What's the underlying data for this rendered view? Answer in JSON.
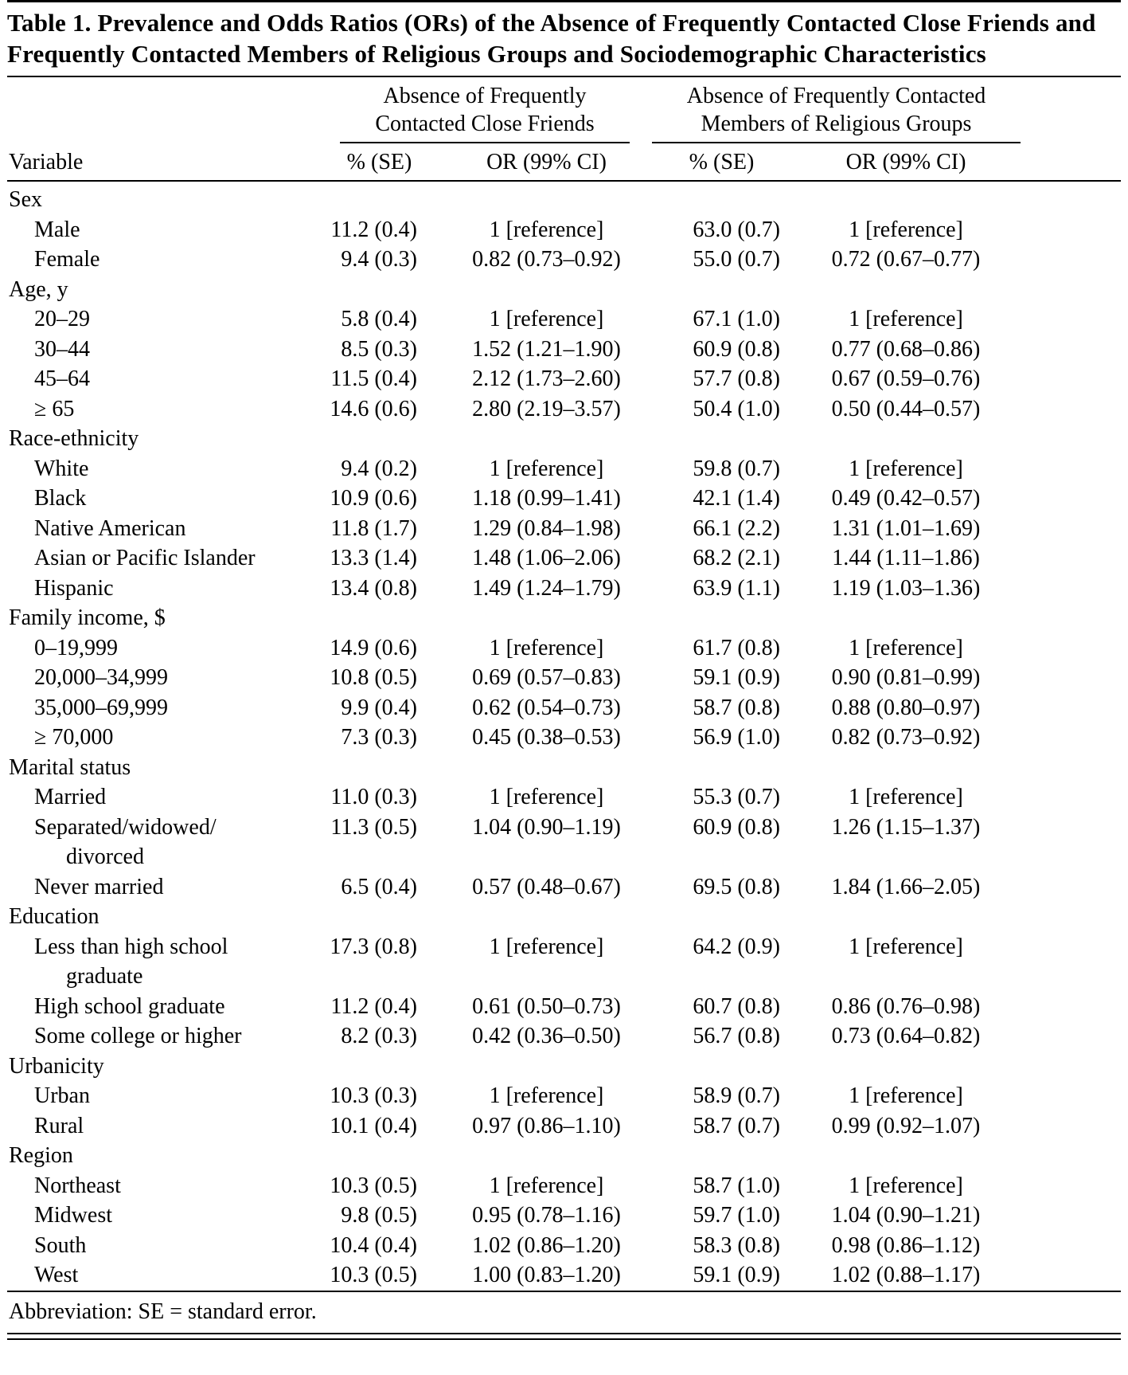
{
  "title": "Table 1. Prevalence and Odds Ratios (ORs) of the Absence of Frequently Contacted Close Friends and Frequently Contacted Members of Religious Groups and Sociodemographic Characteristics",
  "footnote": "Abbreviation: SE = standard error.",
  "table": {
    "group_headers": [
      {
        "label": "Absence of Frequently Contacted Close Friends"
      },
      {
        "label": "Absence of Frequently Contacted Members of Religious Groups"
      }
    ],
    "columns": [
      "Variable",
      "% (SE)",
      "OR (99% CI)",
      "% (SE)",
      "OR (99% CI)"
    ],
    "rows": [
      {
        "type": "section",
        "label": "Sex"
      },
      {
        "type": "data",
        "label": "Male",
        "cells": [
          "11.2 (0.4)",
          "1 [reference]",
          "63.0 (0.7)",
          "1 [reference]"
        ]
      },
      {
        "type": "data",
        "label": "Female",
        "cells": [
          "9.4 (0.3)",
          "0.82 (0.73–0.92)",
          "55.0 (0.7)",
          "0.72 (0.67–0.77)"
        ]
      },
      {
        "type": "section",
        "label": "Age, y"
      },
      {
        "type": "data",
        "label": "20–29",
        "cells": [
          "5.8 (0.4)",
          "1 [reference]",
          "67.1 (1.0)",
          "1 [reference]"
        ]
      },
      {
        "type": "data",
        "label": "30–44",
        "cells": [
          "8.5 (0.3)",
          "1.52 (1.21–1.90)",
          "60.9 (0.8)",
          "0.77 (0.68–0.86)"
        ]
      },
      {
        "type": "data",
        "label": "45–64",
        "cells": [
          "11.5 (0.4)",
          "2.12 (1.73–2.60)",
          "57.7 (0.8)",
          "0.67 (0.59–0.76)"
        ]
      },
      {
        "type": "data",
        "label": "≥ 65",
        "cells": [
          "14.6 (0.6)",
          "2.80 (2.19–3.57)",
          "50.4 (1.0)",
          "0.50 (0.44–0.57)"
        ]
      },
      {
        "type": "section",
        "label": "Race-ethnicity"
      },
      {
        "type": "data",
        "label": "White",
        "cells": [
          "9.4 (0.2)",
          "1 [reference]",
          "59.8 (0.7)",
          "1 [reference]"
        ]
      },
      {
        "type": "data",
        "label": "Black",
        "cells": [
          "10.9 (0.6)",
          "1.18 (0.99–1.41)",
          "42.1 (1.4)",
          "0.49 (0.42–0.57)"
        ]
      },
      {
        "type": "data",
        "label": "Native American",
        "cells": [
          "11.8 (1.7)",
          "1.29 (0.84–1.98)",
          "66.1 (2.2)",
          "1.31 (1.01–1.69)"
        ]
      },
      {
        "type": "data",
        "label": "Asian or Pacific Islander",
        "cells": [
          "13.3 (1.4)",
          "1.48 (1.06–2.06)",
          "68.2 (2.1)",
          "1.44 (1.11–1.86)"
        ]
      },
      {
        "type": "data",
        "label": "Hispanic",
        "cells": [
          "13.4 (0.8)",
          "1.49 (1.24–1.79)",
          "63.9 (1.1)",
          "1.19 (1.03–1.36)"
        ]
      },
      {
        "type": "section",
        "label": "Family income, $"
      },
      {
        "type": "data",
        "label": "0–19,999",
        "cells": [
          "14.9 (0.6)",
          "1 [reference]",
          "61.7 (0.8)",
          "1 [reference]"
        ]
      },
      {
        "type": "data",
        "label": "20,000–34,999",
        "cells": [
          "10.8 (0.5)",
          "0.69 (0.57–0.83)",
          "59.1 (0.9)",
          "0.90 (0.81–0.99)"
        ]
      },
      {
        "type": "data",
        "label": "35,000–69,999",
        "cells": [
          "9.9 (0.4)",
          "0.62 (0.54–0.73)",
          "58.7 (0.8)",
          "0.88 (0.80–0.97)"
        ]
      },
      {
        "type": "data",
        "label": "≥ 70,000",
        "cells": [
          "7.3 (0.3)",
          "0.45 (0.38–0.53)",
          "56.9 (1.0)",
          "0.82 (0.73–0.92)"
        ]
      },
      {
        "type": "section",
        "label": "Marital status"
      },
      {
        "type": "data",
        "label": "Married",
        "cells": [
          "11.0 (0.3)",
          "1 [reference]",
          "55.3 (0.7)",
          "1 [reference]"
        ]
      },
      {
        "type": "data",
        "label": "Separated/widowed/",
        "label2": "divorced",
        "cells": [
          "11.3 (0.5)",
          "1.04 (0.90–1.19)",
          "60.9 (0.8)",
          "1.26 (1.15–1.37)"
        ]
      },
      {
        "type": "data",
        "label": "Never married",
        "cells": [
          "6.5 (0.4)",
          "0.57 (0.48–0.67)",
          "69.5 (0.8)",
          "1.84 (1.66–2.05)"
        ]
      },
      {
        "type": "section",
        "label": "Education"
      },
      {
        "type": "data",
        "label": "Less than high school",
        "label2": "graduate",
        "cells": [
          "17.3 (0.8)",
          "1 [reference]",
          "64.2 (0.9)",
          "1 [reference]"
        ]
      },
      {
        "type": "data",
        "label": "High school graduate",
        "cells": [
          "11.2 (0.4)",
          "0.61 (0.50–0.73)",
          "60.7 (0.8)",
          "0.86 (0.76–0.98)"
        ]
      },
      {
        "type": "data",
        "label": "Some college or higher",
        "cells": [
          "8.2 (0.3)",
          "0.42 (0.36–0.50)",
          "56.7 (0.8)",
          "0.73 (0.64–0.82)"
        ]
      },
      {
        "type": "section",
        "label": "Urbanicity"
      },
      {
        "type": "data",
        "label": "Urban",
        "cells": [
          "10.3 (0.3)",
          "1 [reference]",
          "58.9 (0.7)",
          "1 [reference]"
        ]
      },
      {
        "type": "data",
        "label": "Rural",
        "cells": [
          "10.1 (0.4)",
          "0.97 (0.86–1.10)",
          "58.7 (0.7)",
          "0.99 (0.92–1.07)"
        ]
      },
      {
        "type": "section",
        "label": "Region"
      },
      {
        "type": "data",
        "label": "Northeast",
        "cells": [
          "10.3 (0.5)",
          "1 [reference]",
          "58.7 (1.0)",
          "1 [reference]"
        ]
      },
      {
        "type": "data",
        "label": "Midwest",
        "cells": [
          "9.8 (0.5)",
          "0.95 (0.78–1.16)",
          "59.7 (1.0)",
          "1.04 (0.90–1.21)"
        ]
      },
      {
        "type": "data",
        "label": "South",
        "cells": [
          "10.4 (0.4)",
          "1.02 (0.86–1.20)",
          "58.3 (0.8)",
          "0.98 (0.86–1.12)"
        ]
      },
      {
        "type": "data",
        "label": "West",
        "cells": [
          "10.3 (0.5)",
          "1.00 (0.83–1.20)",
          "59.1 (0.9)",
          "1.02 (0.88–1.17)"
        ]
      }
    ]
  }
}
